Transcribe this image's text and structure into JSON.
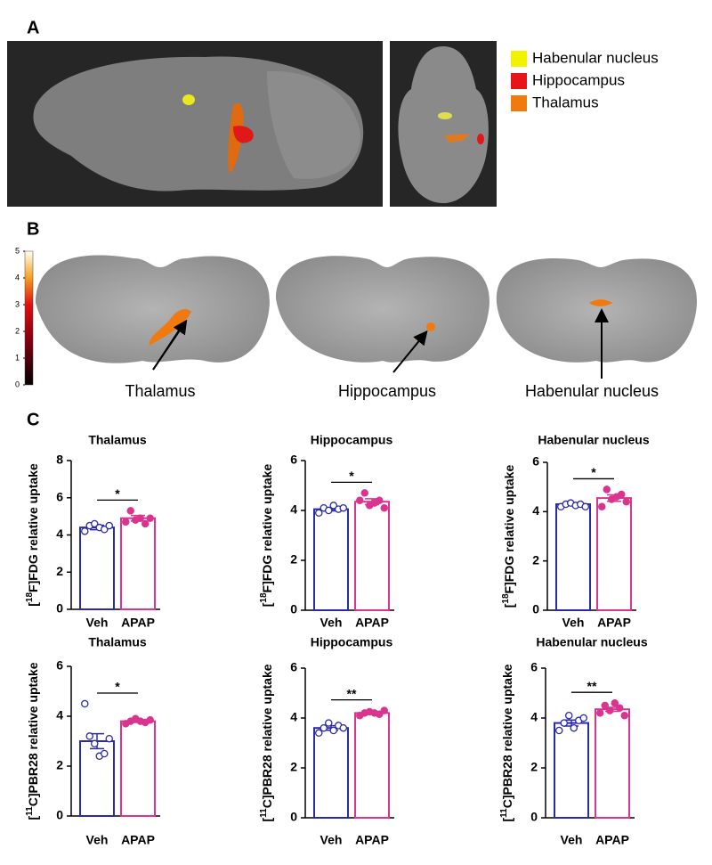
{
  "panels": {
    "a": "A",
    "b": "B",
    "c": "C"
  },
  "legend": [
    {
      "name": "Habenular nucleus",
      "color": "#f2f200"
    },
    {
      "name": "Hippocampus",
      "color": "#e8141a"
    },
    {
      "name": "Thalamus",
      "color": "#f07a10"
    }
  ],
  "annotations": [
    "Thalamus",
    "Hippocampus",
    "Habenular nucleus"
  ],
  "colorbar": {
    "lim": [
      0,
      5
    ],
    "ticks": [
      0,
      1,
      2,
      3,
      4,
      5
    ]
  },
  "chart_data": [
    {
      "type": "bar",
      "title": "Thalamus",
      "ylabel": [
        "[",
        "18",
        "F]FDG relative uptake"
      ],
      "categories": [
        "Veh",
        "APAP"
      ],
      "values": [
        4.4,
        4.9
      ],
      "errors": [
        0.12,
        0.15
      ],
      "points": [
        [
          4.2,
          4.5,
          4.6,
          4.4,
          4.3,
          4.5
        ],
        [
          4.7,
          5.3,
          4.8,
          4.9,
          4.6,
          4.9
        ]
      ],
      "colors": [
        "#2b2ba8",
        "#d9358f"
      ],
      "significance": "*",
      "ylim": [
        0,
        8
      ],
      "yticks": [
        0,
        2,
        4,
        6,
        8
      ]
    },
    {
      "type": "bar",
      "title": "Hippocampus",
      "ylabel": [
        "[",
        "18",
        "F]FDG relative uptake"
      ],
      "categories": [
        "Veh",
        "APAP"
      ],
      "values": [
        4.05,
        4.35
      ],
      "errors": [
        0.07,
        0.12
      ],
      "points": [
        [
          3.9,
          4.1,
          4.0,
          4.2,
          4.05,
          4.1
        ],
        [
          4.4,
          4.7,
          4.2,
          4.3,
          4.4,
          4.1
        ]
      ],
      "colors": [
        "#2b2ba8",
        "#d9358f"
      ],
      "significance": "*",
      "ylim": [
        0,
        6
      ],
      "yticks": [
        0,
        2,
        4,
        6
      ]
    },
    {
      "type": "bar",
      "title": "Habenular nucleus",
      "ylabel": [
        "[",
        "18",
        "F]FDG relative uptake"
      ],
      "categories": [
        "Veh",
        "APAP"
      ],
      "values": [
        4.3,
        4.55
      ],
      "errors": [
        0.05,
        0.13
      ],
      "points": [
        [
          4.2,
          4.3,
          4.35,
          4.25,
          4.3,
          4.2
        ],
        [
          4.2,
          4.9,
          4.5,
          4.6,
          4.7,
          4.4
        ]
      ],
      "colors": [
        "#2b2ba8",
        "#d9358f"
      ],
      "significance": "*",
      "ylim": [
        0,
        6
      ],
      "yticks": [
        0,
        2,
        4,
        6
      ]
    },
    {
      "type": "bar",
      "title": "Thalamus",
      "ylabel": [
        "[",
        "11",
        "C]PBR28 relative uptake"
      ],
      "categories": [
        "Veh",
        "APAP"
      ],
      "values": [
        3.0,
        3.8
      ],
      "errors": [
        0.3,
        0.05
      ],
      "points": [
        [
          4.5,
          3.2,
          2.9,
          2.4,
          2.5,
          3.1
        ],
        [
          3.7,
          3.8,
          3.9,
          3.8,
          3.75,
          3.85
        ]
      ],
      "colors": [
        "#2b2ba8",
        "#d9358f"
      ],
      "significance": "*",
      "ylim": [
        0,
        6
      ],
      "yticks": [
        0,
        2,
        4,
        6
      ]
    },
    {
      "type": "bar",
      "title": "Hippocampus",
      "ylabel": [
        "[",
        "11",
        "C]PBR28 relative uptake"
      ],
      "categories": [
        "Veh",
        "APAP"
      ],
      "values": [
        3.6,
        4.2
      ],
      "errors": [
        0.09,
        0.04
      ],
      "points": [
        [
          3.4,
          3.6,
          3.8,
          3.5,
          3.7,
          3.6
        ],
        [
          4.1,
          4.2,
          4.25,
          4.2,
          4.15,
          4.3
        ]
      ],
      "colors": [
        "#2b2ba8",
        "#d9358f"
      ],
      "significance": "**",
      "ylim": [
        0,
        6
      ],
      "yticks": [
        0,
        2,
        4,
        6
      ]
    },
    {
      "type": "bar",
      "title": "Habenular nucleus",
      "ylabel": [
        "[",
        "11",
        "C]PBR28 relative uptake"
      ],
      "categories": [
        "Veh",
        "APAP"
      ],
      "values": [
        3.8,
        4.35
      ],
      "errors": [
        0.12,
        0.08
      ],
      "points": [
        [
          3.5,
          3.8,
          4.1,
          3.6,
          3.9,
          4.0
        ],
        [
          4.2,
          4.5,
          4.3,
          4.6,
          4.4,
          4.1
        ]
      ],
      "colors": [
        "#2b2ba8",
        "#d9358f"
      ],
      "significance": "**",
      "ylim": [
        0,
        6
      ],
      "yticks": [
        0,
        2,
        4,
        6
      ]
    }
  ]
}
